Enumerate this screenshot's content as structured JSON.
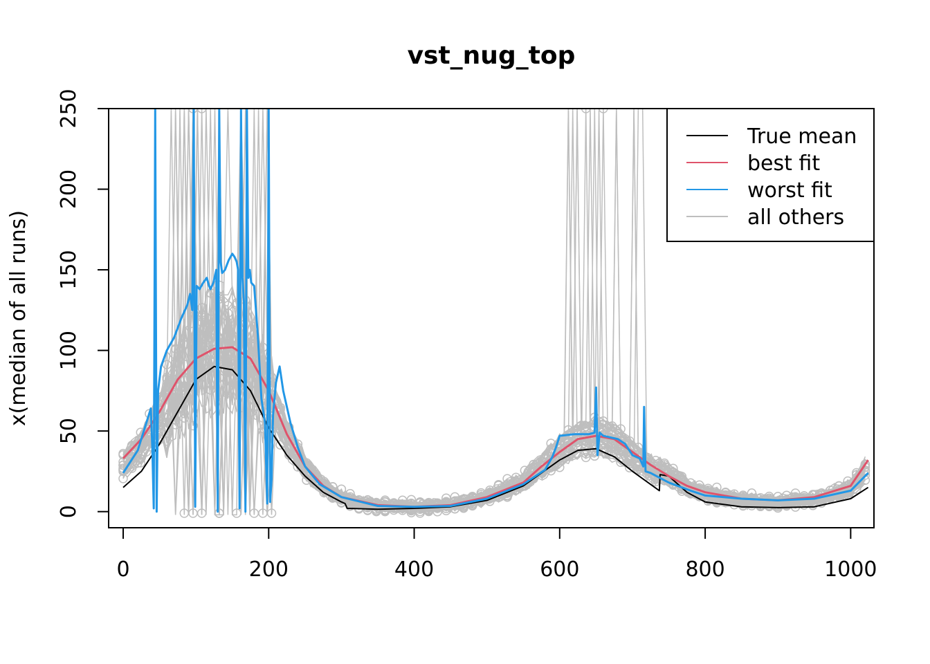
{
  "chart_data": {
    "type": "line",
    "title": "vst_nug_top",
    "xlabel": "",
    "ylabel": "x(median of all runs)",
    "xlim": [
      -20,
      1032
    ],
    "ylim": [
      -10,
      250
    ],
    "x_ticks": [
      0,
      200,
      400,
      600,
      800,
      1000
    ],
    "y_ticks": [
      0,
      50,
      100,
      150,
      200,
      250
    ],
    "legend": {
      "position": "top-right",
      "entries": [
        {
          "label": "True mean",
          "color": "#000000"
        },
        {
          "label": "best fit",
          "color": "#DF536B"
        },
        {
          "label": "worst fit",
          "color": "#2297E6"
        },
        {
          "label": "all others",
          "color": "#BEBEBE"
        }
      ]
    },
    "series": [
      {
        "name": "True mean",
        "color": "#000000",
        "x": [
          0,
          25,
          50,
          75,
          100,
          125,
          150,
          175,
          200,
          225,
          250,
          275,
          300,
          305,
          308,
          350,
          400,
          450,
          500,
          550,
          575,
          600,
          625,
          650,
          675,
          700,
          737,
          738,
          750,
          775,
          800,
          850,
          900,
          950,
          1000,
          1024
        ],
        "y": [
          15,
          25,
          42,
          62,
          82,
          90,
          88,
          75,
          52,
          35,
          22,
          12,
          6,
          5,
          2,
          1.5,
          2,
          3,
          7,
          16,
          24,
          32,
          38,
          39,
          34,
          25,
          13,
          23,
          22,
          12,
          6,
          3,
          2.5,
          3,
          8,
          15
        ]
      },
      {
        "name": "best fit",
        "color": "#DF536B",
        "x": [
          0,
          25,
          50,
          75,
          100,
          125,
          150,
          175,
          200,
          225,
          250,
          275,
          300,
          350,
          400,
          450,
          500,
          550,
          575,
          600,
          625,
          650,
          675,
          700,
          725,
          750,
          775,
          800,
          850,
          900,
          950,
          1000,
          1024
        ],
        "y": [
          33,
          45,
          62,
          82,
          95,
          101,
          102,
          95,
          75,
          48,
          28,
          16,
          9,
          4,
          3,
          4,
          9,
          18,
          28,
          37,
          45,
          47,
          45,
          37,
          29,
          22,
          16,
          12,
          8,
          7,
          9,
          16,
          32
        ]
      },
      {
        "name": "worst fit",
        "color": "#2297E6",
        "x": [
          0,
          20,
          38,
          40,
          42,
          44,
          46,
          48,
          52,
          60,
          70,
          80,
          88,
          92,
          95,
          97,
          99,
          101,
          105,
          110,
          115,
          118,
          120,
          124,
          128,
          130,
          132,
          134,
          136,
          140,
          145,
          150,
          153,
          156,
          158,
          160,
          162,
          164,
          166,
          168,
          170,
          172,
          174,
          176,
          180,
          185,
          190,
          195,
          198,
          200,
          202,
          204,
          206,
          210,
          215,
          220,
          230,
          240,
          250,
          270,
          300,
          350,
          400,
          450,
          500,
          550,
          580,
          590,
          595,
          600,
          620,
          640,
          648,
          650,
          652,
          655,
          660,
          670,
          680,
          690,
          700,
          710,
          715,
          716,
          718,
          725,
          750,
          780,
          800,
          850,
          900,
          950,
          1000,
          1024
        ],
        "y": [
          24,
          38,
          64,
          40,
          2,
          250,
          0,
          75,
          90,
          100,
          108,
          120,
          128,
          135,
          125,
          250,
          3,
          140,
          138,
          142,
          145,
          140,
          138,
          142,
          150,
          0,
          250,
          155,
          148,
          150,
          156,
          160,
          158,
          155,
          150,
          2,
          250,
          145,
          130,
          0,
          250,
          145,
          150,
          142,
          140,
          110,
          70,
          55,
          5,
          250,
          6,
          20,
          60,
          80,
          90,
          75,
          55,
          40,
          28,
          17,
          9,
          3.5,
          3,
          3.5,
          8,
          17,
          26,
          34,
          40,
          47,
          48,
          48,
          49,
          77,
          35,
          49,
          47,
          46,
          45,
          42,
          35,
          33,
          28,
          65,
          25,
          24,
          18,
          13,
          10,
          8,
          7,
          8,
          13,
          24
        ]
      }
    ]
  }
}
